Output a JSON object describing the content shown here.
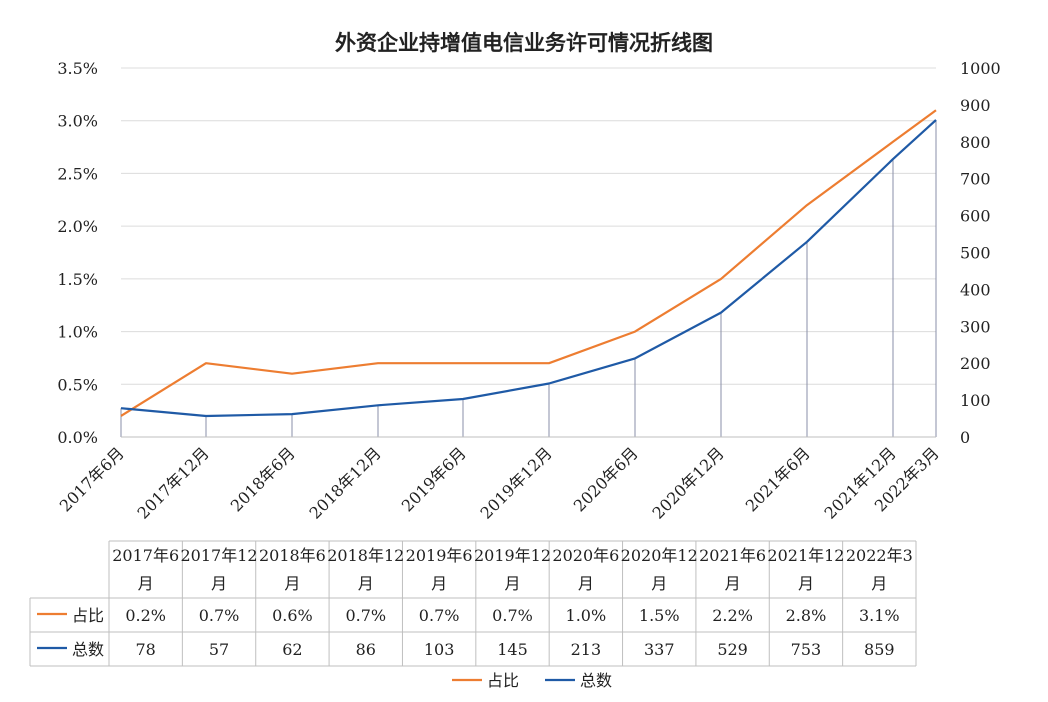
{
  "chart_data": {
    "type": "line",
    "title": "外资企业持增值电信业务许可情况折线图",
    "categories": [
      "2017年6月",
      "2017年12月",
      "2018年6月",
      "2018年12月",
      "2019年6月",
      "2019年12月",
      "2020年6月",
      "2020年12月",
      "2021年6月",
      "2021年12月",
      "2022年3月"
    ],
    "table_head_line1": [
      "2017年6",
      "2017年12",
      "2018年6",
      "2018年12",
      "2019年6",
      "2019年12",
      "2020年6",
      "2020年12",
      "2021年6",
      "2021年12",
      "2022年3"
    ],
    "table_head_line2": "月",
    "left_axis": {
      "ticks": [
        "0.0%",
        "0.5%",
        "1.0%",
        "1.5%",
        "2.0%",
        "2.5%",
        "3.0%",
        "3.5%"
      ],
      "ylim": [
        0,
        3.5
      ]
    },
    "right_axis": {
      "ticks": [
        "0",
        "100",
        "200",
        "300",
        "400",
        "500",
        "600",
        "700",
        "800",
        "900",
        "1000"
      ],
      "ylim": [
        0,
        1000
      ]
    },
    "series": [
      {
        "name": "占比",
        "axis": "left",
        "color": "#ED7D31",
        "values": [
          0.2,
          0.7,
          0.6,
          0.7,
          0.7,
          0.7,
          1.0,
          1.5,
          2.2,
          2.8,
          3.1
        ],
        "labels": [
          "0.2%",
          "0.7%",
          "0.6%",
          "0.7%",
          "0.7%",
          "0.7%",
          "1.0%",
          "1.5%",
          "2.2%",
          "2.8%",
          "3.1%"
        ]
      },
      {
        "name": "总数",
        "axis": "right",
        "color": "#1F5AA6",
        "values": [
          78,
          57,
          62,
          86,
          103,
          145,
          213,
          337,
          529,
          753,
          859
        ],
        "labels": [
          "78",
          "57",
          "62",
          "86",
          "103",
          "145",
          "213",
          "337",
          "529",
          "753",
          "859"
        ]
      }
    ],
    "grid": true,
    "legend": "bottom",
    "data_table": true
  }
}
